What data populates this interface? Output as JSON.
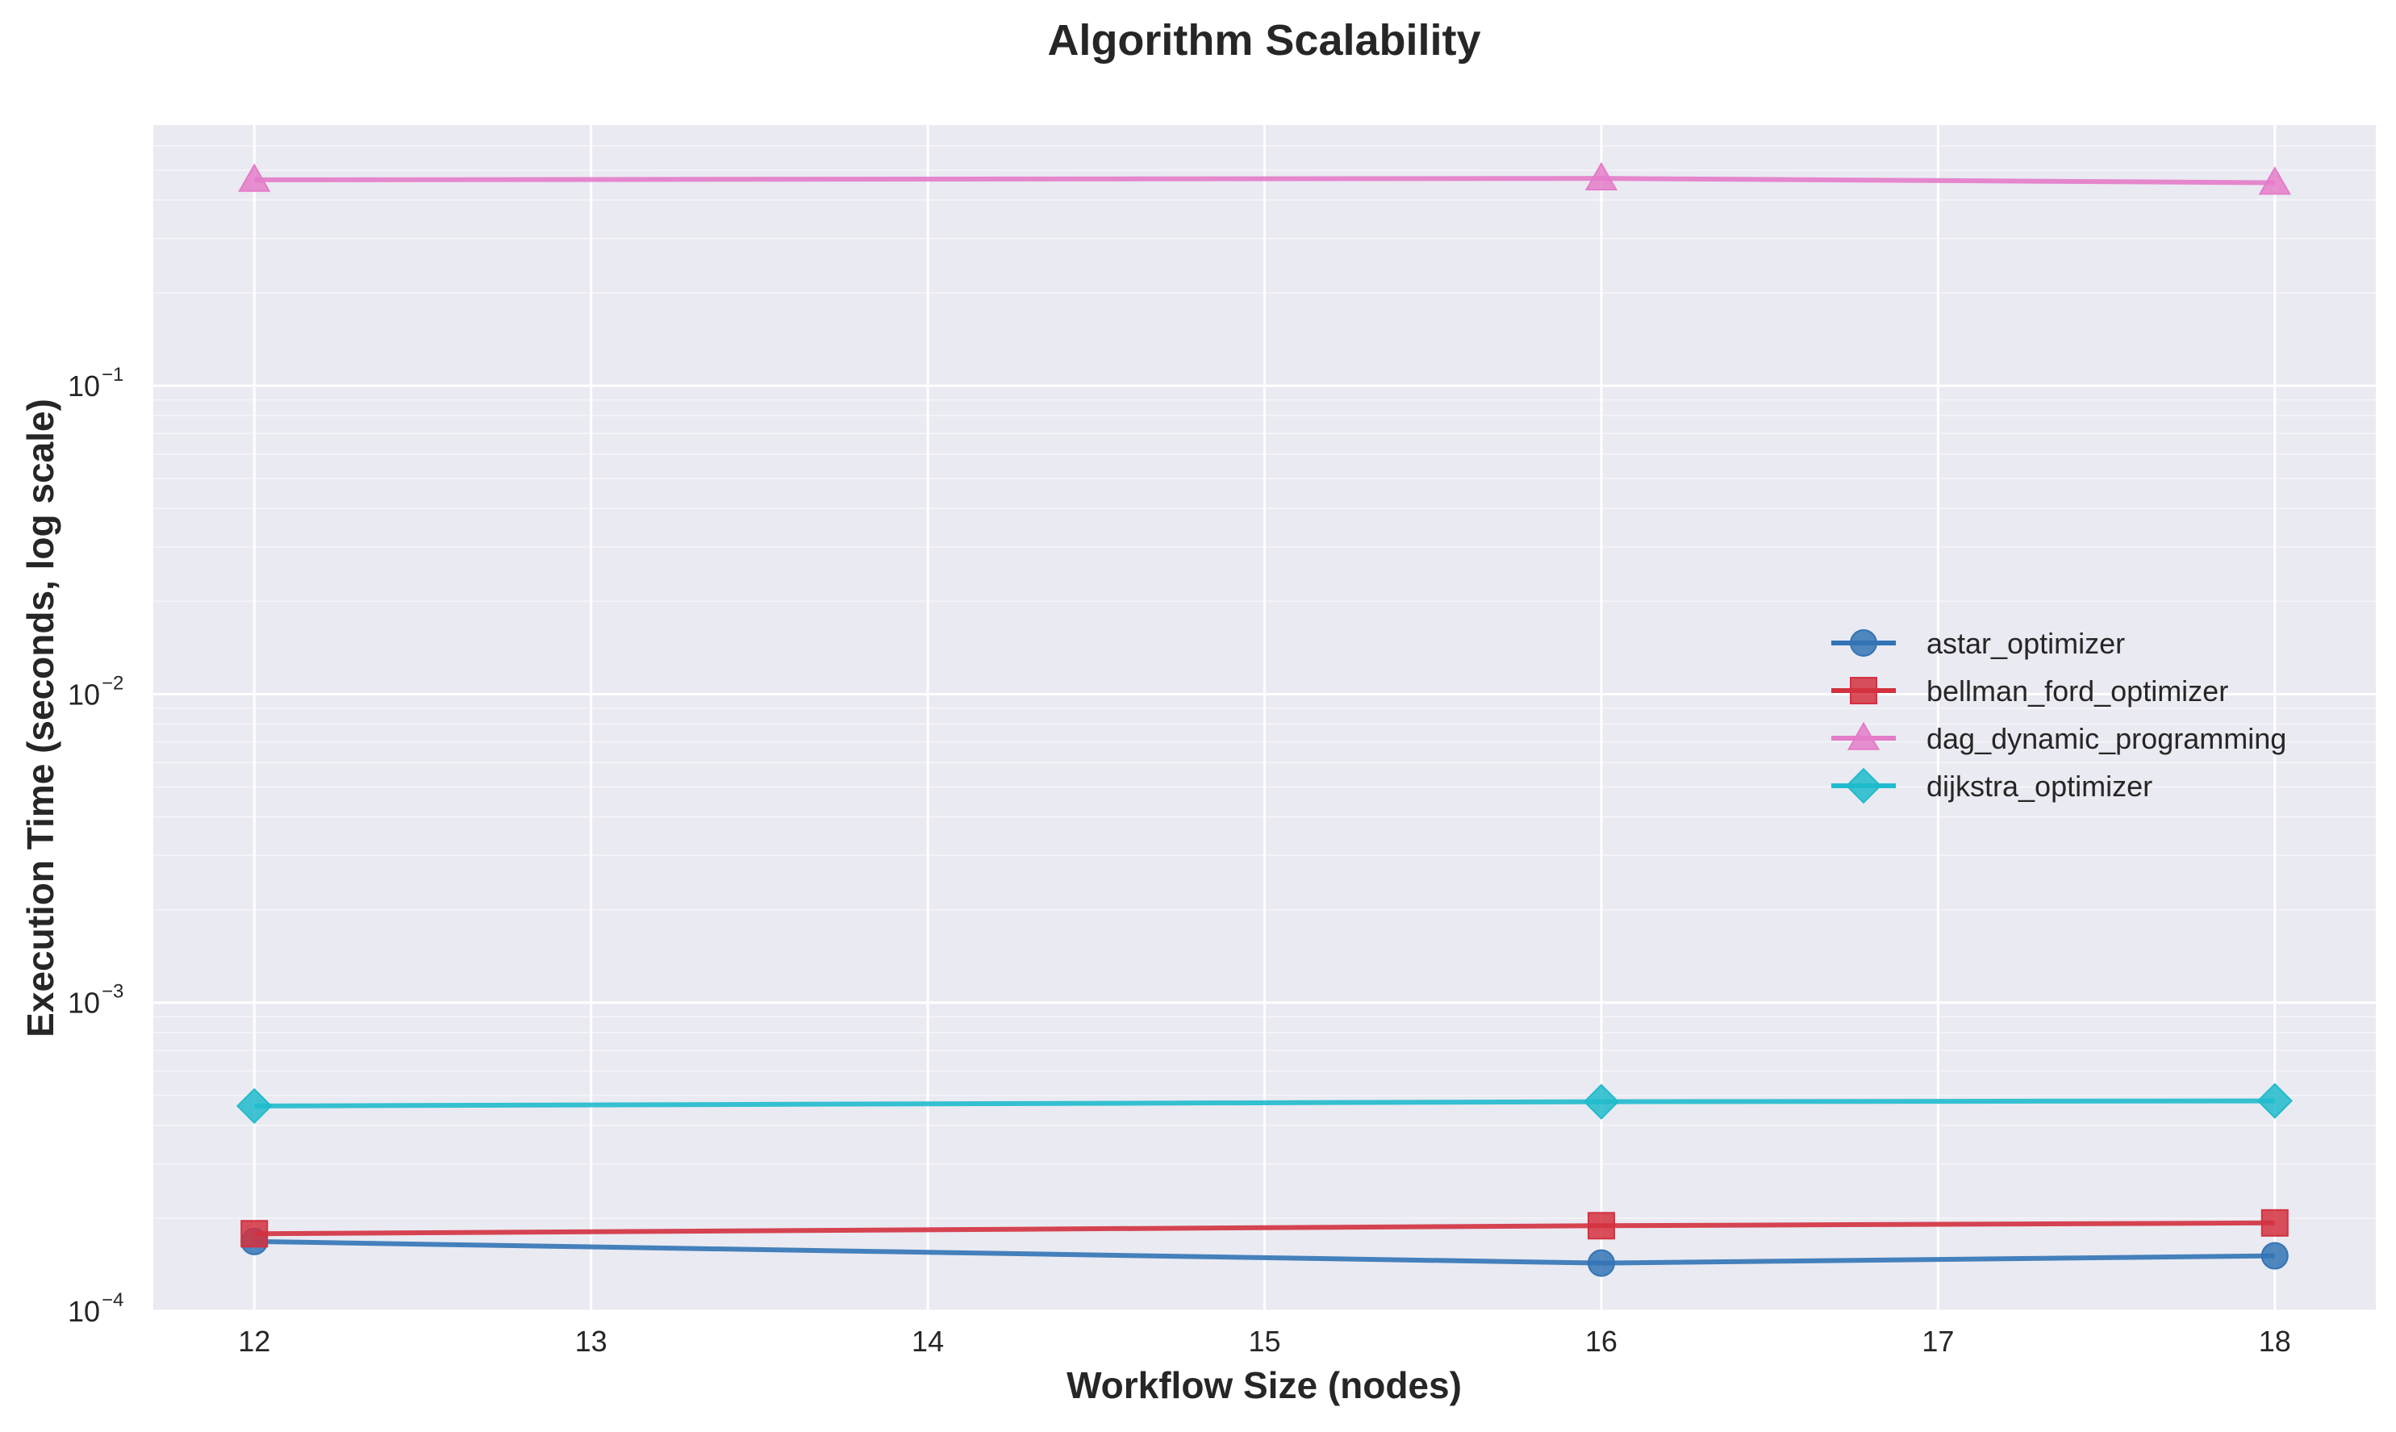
{
  "chart_data": {
    "type": "line",
    "title": "Algorithm Scalability",
    "xlabel": "Workflow Size (nodes)",
    "ylabel": "Execution Time (seconds, log scale)",
    "xlim": [
      11.7,
      18.3
    ],
    "ylim": [
      0.0001,
      0.7
    ],
    "yscale": "log",
    "xticks": [
      12,
      13,
      14,
      15,
      16,
      17,
      18
    ],
    "yticks": [
      {
        "value": 0.0001,
        "base": "10",
        "exp": "−4"
      },
      {
        "value": 0.001,
        "base": "10",
        "exp": "−3"
      },
      {
        "value": 0.01,
        "base": "10",
        "exp": "−2"
      },
      {
        "value": 0.1,
        "base": "10",
        "exp": "−1"
      }
    ],
    "grid": true,
    "legend_position": "center-right",
    "series": [
      {
        "name": "astar_optimizer",
        "color": "#3274b5",
        "marker": "circle",
        "x": [
          12,
          16,
          18
        ],
        "y": [
          0.000168,
          0.000143,
          0.000151
        ]
      },
      {
        "name": "bellman_ford_optimizer",
        "color": "#d3313f",
        "marker": "square",
        "x": [
          12,
          16,
          18
        ],
        "y": [
          0.000178,
          0.000189,
          0.000193
        ]
      },
      {
        "name": "dag_dynamic_programming",
        "color": "#e47cc9",
        "marker": "triangle",
        "x": [
          12,
          16,
          18
        ],
        "y": [
          0.465,
          0.47,
          0.455
        ]
      },
      {
        "name": "dijkstra_optimizer",
        "color": "#20bbcc",
        "marker": "diamond",
        "x": [
          12,
          16,
          18
        ],
        "y": [
          0.000462,
          0.000477,
          0.00048
        ]
      }
    ]
  }
}
